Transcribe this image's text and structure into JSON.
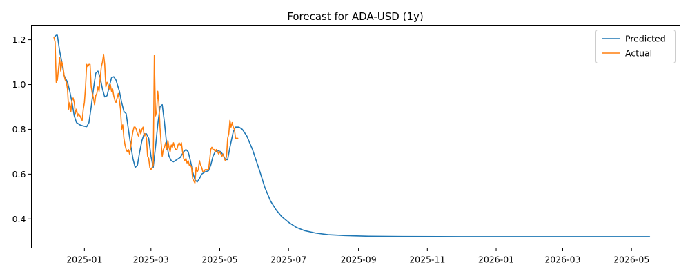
{
  "chart_data": {
    "type": "line",
    "title": "Forecast for ADA-USD (1y)",
    "xlabel": "",
    "ylabel": "",
    "x_axis_type": "date",
    "xlim": [
      "2024-11-15",
      "2026-06-13"
    ],
    "ylim": [
      0.27,
      1.265
    ],
    "x_ticks": [
      "2025-01-01",
      "2025-03-01",
      "2025-05-01",
      "2025-07-01",
      "2025-09-01",
      "2025-11-01",
      "2026-01-01",
      "2026-03-01",
      "2026-05-01"
    ],
    "x_tick_labels": [
      "2025-01",
      "2025-03",
      "2025-05",
      "2025-07",
      "2025-09",
      "2025-11",
      "2026-01",
      "2026-03",
      "2026-05"
    ],
    "y_ticks": [
      0.4,
      0.6,
      0.8,
      1.0,
      1.2
    ],
    "y_tick_labels": [
      "0.4",
      "0.6",
      "0.8",
      "1.0",
      "1.2"
    ],
    "grid": false,
    "legend_position": "top-right",
    "series": [
      {
        "name": "Predicted",
        "color": "#1f77b4",
        "points": [
          [
            "2024-12-05",
            1.21
          ],
          [
            "2024-12-07",
            1.22
          ],
          [
            "2024-12-08",
            1.22
          ],
          [
            "2024-12-10",
            1.15
          ],
          [
            "2024-12-12",
            1.1
          ],
          [
            "2024-12-14",
            1.04
          ],
          [
            "2024-12-17",
            1.01
          ],
          [
            "2024-12-19",
            0.97
          ],
          [
            "2024-12-21",
            0.92
          ],
          [
            "2024-12-23",
            0.86
          ],
          [
            "2024-12-25",
            0.83
          ],
          [
            "2024-12-28",
            0.82
          ],
          [
            "2024-12-31",
            0.815
          ],
          [
            "2025-01-03",
            0.812
          ],
          [
            "2025-01-05",
            0.83
          ],
          [
            "2025-01-07",
            0.9
          ],
          [
            "2025-01-09",
            0.98
          ],
          [
            "2025-01-11",
            1.05
          ],
          [
            "2025-01-13",
            1.06
          ],
          [
            "2025-01-15",
            1.03
          ],
          [
            "2025-01-17",
            0.98
          ],
          [
            "2025-01-19",
            0.945
          ],
          [
            "2025-01-21",
            0.95
          ],
          [
            "2025-01-23",
            0.99
          ],
          [
            "2025-01-25",
            1.03
          ],
          [
            "2025-01-27",
            1.035
          ],
          [
            "2025-01-29",
            1.02
          ],
          [
            "2025-02-01",
            0.97
          ],
          [
            "2025-02-03",
            0.92
          ],
          [
            "2025-02-05",
            0.88
          ],
          [
            "2025-02-07",
            0.87
          ],
          [
            "2025-02-09",
            0.8
          ],
          [
            "2025-02-11",
            0.73
          ],
          [
            "2025-02-13",
            0.67
          ],
          [
            "2025-02-15",
            0.63
          ],
          [
            "2025-02-17",
            0.64
          ],
          [
            "2025-02-19",
            0.7
          ],
          [
            "2025-02-21",
            0.75
          ],
          [
            "2025-02-23",
            0.78
          ],
          [
            "2025-02-25",
            0.78
          ],
          [
            "2025-02-27",
            0.76
          ],
          [
            "2025-03-01",
            0.68
          ],
          [
            "2025-03-03",
            0.63
          ],
          [
            "2025-03-05",
            0.72
          ],
          [
            "2025-03-07",
            0.82
          ],
          [
            "2025-03-09",
            0.9
          ],
          [
            "2025-03-11",
            0.91
          ],
          [
            "2025-03-13",
            0.83
          ],
          [
            "2025-03-15",
            0.73
          ],
          [
            "2025-03-17",
            0.68
          ],
          [
            "2025-03-19",
            0.66
          ],
          [
            "2025-03-21",
            0.655
          ],
          [
            "2025-03-24",
            0.665
          ],
          [
            "2025-03-27",
            0.675
          ],
          [
            "2025-03-30",
            0.7
          ],
          [
            "2025-04-01",
            0.71
          ],
          [
            "2025-04-03",
            0.7
          ],
          [
            "2025-04-05",
            0.66
          ],
          [
            "2025-04-07",
            0.61
          ],
          [
            "2025-04-09",
            0.575
          ],
          [
            "2025-04-11",
            0.565
          ],
          [
            "2025-04-13",
            0.58
          ],
          [
            "2025-04-15",
            0.6
          ],
          [
            "2025-04-18",
            0.61
          ],
          [
            "2025-04-21",
            0.615
          ],
          [
            "2025-04-23",
            0.64
          ],
          [
            "2025-04-25",
            0.68
          ],
          [
            "2025-04-27",
            0.7
          ],
          [
            "2025-04-29",
            0.705
          ],
          [
            "2025-05-02",
            0.7
          ],
          [
            "2025-05-04",
            0.685
          ],
          [
            "2025-05-06",
            0.665
          ],
          [
            "2025-05-08",
            0.665
          ],
          [
            "2025-05-10",
            0.72
          ],
          [
            "2025-05-13",
            0.79
          ],
          [
            "2025-05-15",
            0.81
          ],
          [
            "2025-05-18",
            0.81
          ],
          [
            "2025-05-21",
            0.8
          ],
          [
            "2025-05-25",
            0.77
          ],
          [
            "2025-05-30",
            0.71
          ],
          [
            "2025-06-05",
            0.62
          ],
          [
            "2025-06-10",
            0.54
          ],
          [
            "2025-06-15",
            0.48
          ],
          [
            "2025-06-20",
            0.44
          ],
          [
            "2025-06-25",
            0.41
          ],
          [
            "2025-07-01",
            0.385
          ],
          [
            "2025-07-08",
            0.362
          ],
          [
            "2025-07-15",
            0.348
          ],
          [
            "2025-07-25",
            0.337
          ],
          [
            "2025-08-05",
            0.33
          ],
          [
            "2025-08-20",
            0.326
          ],
          [
            "2025-09-10",
            0.323
          ],
          [
            "2025-10-10",
            0.322
          ],
          [
            "2025-12-01",
            0.321
          ],
          [
            "2026-02-01",
            0.321
          ],
          [
            "2026-04-01",
            0.321
          ],
          [
            "2026-05-17",
            0.321
          ]
        ]
      },
      {
        "name": "Actual",
        "color": "#ff7f0e",
        "points": [
          [
            "2024-12-05",
            1.21
          ],
          [
            "2024-12-06",
            1.19
          ],
          [
            "2024-12-07",
            1.01
          ],
          [
            "2024-12-08",
            1.02
          ],
          [
            "2024-12-09",
            1.07
          ],
          [
            "2024-12-10",
            1.12
          ],
          [
            "2024-12-11",
            1.06
          ],
          [
            "2024-12-12",
            1.1
          ],
          [
            "2024-12-13",
            1.08
          ],
          [
            "2024-12-14",
            1.04
          ],
          [
            "2024-12-15",
            1.02
          ],
          [
            "2024-12-16",
            1.01
          ],
          [
            "2024-12-17",
            0.98
          ],
          [
            "2024-12-18",
            0.89
          ],
          [
            "2024-12-19",
            0.92
          ],
          [
            "2024-12-20",
            0.88
          ],
          [
            "2024-12-21",
            0.93
          ],
          [
            "2024-12-22",
            0.94
          ],
          [
            "2024-12-23",
            0.92
          ],
          [
            "2024-12-24",
            0.87
          ],
          [
            "2024-12-25",
            0.89
          ],
          [
            "2024-12-26",
            0.86
          ],
          [
            "2024-12-27",
            0.87
          ],
          [
            "2024-12-28",
            0.86
          ],
          [
            "2024-12-29",
            0.85
          ],
          [
            "2024-12-30",
            0.84
          ],
          [
            "2024-12-31",
            0.89
          ],
          [
            "2025-01-01",
            0.92
          ],
          [
            "2025-01-02",
            0.99
          ],
          [
            "2025-01-03",
            1.09
          ],
          [
            "2025-01-04",
            1.08
          ],
          [
            "2025-01-05",
            1.09
          ],
          [
            "2025-01-06",
            1.09
          ],
          [
            "2025-01-07",
            0.99
          ],
          [
            "2025-01-08",
            0.96
          ],
          [
            "2025-01-09",
            0.94
          ],
          [
            "2025-01-10",
            0.91
          ],
          [
            "2025-01-11",
            0.95
          ],
          [
            "2025-01-12",
            0.96
          ],
          [
            "2025-01-13",
            0.99
          ],
          [
            "2025-01-14",
            0.97
          ],
          [
            "2025-01-15",
            1.03
          ],
          [
            "2025-01-16",
            1.08
          ],
          [
            "2025-01-17",
            1.1
          ],
          [
            "2025-01-18",
            1.135
          ],
          [
            "2025-01-19",
            1.09
          ],
          [
            "2025-01-20",
            0.99
          ],
          [
            "2025-01-21",
            1.01
          ],
          [
            "2025-01-22",
            1.0
          ],
          [
            "2025-01-23",
            0.98
          ],
          [
            "2025-01-24",
            1.0
          ],
          [
            "2025-01-25",
            0.97
          ],
          [
            "2025-01-26",
            0.98
          ],
          [
            "2025-01-27",
            0.95
          ],
          [
            "2025-01-28",
            0.93
          ],
          [
            "2025-01-29",
            0.92
          ],
          [
            "2025-01-30",
            0.94
          ],
          [
            "2025-01-31",
            0.96
          ],
          [
            "2025-02-01",
            0.93
          ],
          [
            "2025-02-02",
            0.89
          ],
          [
            "2025-02-03",
            0.8
          ],
          [
            "2025-02-04",
            0.82
          ],
          [
            "2025-02-05",
            0.76
          ],
          [
            "2025-02-06",
            0.73
          ],
          [
            "2025-02-07",
            0.71
          ],
          [
            "2025-02-08",
            0.7
          ],
          [
            "2025-02-09",
            0.71
          ],
          [
            "2025-02-10",
            0.69
          ],
          [
            "2025-02-11",
            0.72
          ],
          [
            "2025-02-12",
            0.76
          ],
          [
            "2025-02-13",
            0.79
          ],
          [
            "2025-02-14",
            0.81
          ],
          [
            "2025-02-15",
            0.81
          ],
          [
            "2025-02-16",
            0.8
          ],
          [
            "2025-02-17",
            0.78
          ],
          [
            "2025-02-18",
            0.77
          ],
          [
            "2025-02-19",
            0.8
          ],
          [
            "2025-02-20",
            0.78
          ],
          [
            "2025-02-21",
            0.8
          ],
          [
            "2025-02-22",
            0.81
          ],
          [
            "2025-02-23",
            0.77
          ],
          [
            "2025-02-24",
            0.78
          ],
          [
            "2025-02-25",
            0.76
          ],
          [
            "2025-02-26",
            0.68
          ],
          [
            "2025-02-27",
            0.67
          ],
          [
            "2025-02-28",
            0.63
          ],
          [
            "2025-03-01",
            0.62
          ],
          [
            "2025-03-02",
            0.63
          ],
          [
            "2025-03-03",
            0.64
          ],
          [
            "2025-03-04",
            1.13
          ],
          [
            "2025-03-05",
            0.86
          ],
          [
            "2025-03-06",
            0.88
          ],
          [
            "2025-03-07",
            0.97
          ],
          [
            "2025-03-08",
            0.92
          ],
          [
            "2025-03-09",
            0.81
          ],
          [
            "2025-03-10",
            0.74
          ],
          [
            "2025-03-11",
            0.68
          ],
          [
            "2025-03-12",
            0.71
          ],
          [
            "2025-03-13",
            0.72
          ],
          [
            "2025-03-14",
            0.74
          ],
          [
            "2025-03-15",
            0.71
          ],
          [
            "2025-03-16",
            0.75
          ],
          [
            "2025-03-17",
            0.72
          ],
          [
            "2025-03-18",
            0.7
          ],
          [
            "2025-03-19",
            0.73
          ],
          [
            "2025-03-20",
            0.72
          ],
          [
            "2025-03-21",
            0.74
          ],
          [
            "2025-03-22",
            0.72
          ],
          [
            "2025-03-23",
            0.71
          ],
          [
            "2025-03-24",
            0.71
          ],
          [
            "2025-03-25",
            0.73
          ],
          [
            "2025-03-26",
            0.74
          ],
          [
            "2025-03-27",
            0.73
          ],
          [
            "2025-03-28",
            0.74
          ],
          [
            "2025-03-29",
            0.7
          ],
          [
            "2025-03-30",
            0.67
          ],
          [
            "2025-03-31",
            0.66
          ],
          [
            "2025-04-01",
            0.67
          ],
          [
            "2025-04-02",
            0.65
          ],
          [
            "2025-04-03",
            0.66
          ],
          [
            "2025-04-04",
            0.64
          ],
          [
            "2025-04-05",
            0.64
          ],
          [
            "2025-04-06",
            0.63
          ],
          [
            "2025-04-07",
            0.58
          ],
          [
            "2025-04-08",
            0.57
          ],
          [
            "2025-04-09",
            0.56
          ],
          [
            "2025-04-10",
            0.63
          ],
          [
            "2025-04-11",
            0.61
          ],
          [
            "2025-04-12",
            0.62
          ],
          [
            "2025-04-13",
            0.66
          ],
          [
            "2025-04-14",
            0.64
          ],
          [
            "2025-04-15",
            0.63
          ],
          [
            "2025-04-16",
            0.61
          ],
          [
            "2025-04-17",
            0.61
          ],
          [
            "2025-04-18",
            0.62
          ],
          [
            "2025-04-19",
            0.62
          ],
          [
            "2025-04-20",
            0.62
          ],
          [
            "2025-04-21",
            0.62
          ],
          [
            "2025-04-22",
            0.66
          ],
          [
            "2025-04-23",
            0.71
          ],
          [
            "2025-04-24",
            0.72
          ],
          [
            "2025-04-25",
            0.71
          ],
          [
            "2025-04-26",
            0.71
          ],
          [
            "2025-04-27",
            0.7
          ],
          [
            "2025-04-28",
            0.71
          ],
          [
            "2025-04-29",
            0.7
          ],
          [
            "2025-04-30",
            0.69
          ],
          [
            "2025-05-01",
            0.7
          ],
          [
            "2025-05-02",
            0.69
          ],
          [
            "2025-05-03",
            0.68
          ],
          [
            "2025-05-04",
            0.69
          ],
          [
            "2025-05-05",
            0.67
          ],
          [
            "2025-05-06",
            0.66
          ],
          [
            "2025-05-07",
            0.68
          ],
          [
            "2025-05-08",
            0.76
          ],
          [
            "2025-05-09",
            0.78
          ],
          [
            "2025-05-10",
            0.84
          ],
          [
            "2025-05-11",
            0.81
          ],
          [
            "2025-05-12",
            0.83
          ],
          [
            "2025-05-13",
            0.81
          ],
          [
            "2025-05-14",
            0.8
          ],
          [
            "2025-05-15",
            0.76
          ],
          [
            "2025-05-16",
            0.76
          ],
          [
            "2025-05-17",
            0.76
          ]
        ]
      }
    ]
  }
}
